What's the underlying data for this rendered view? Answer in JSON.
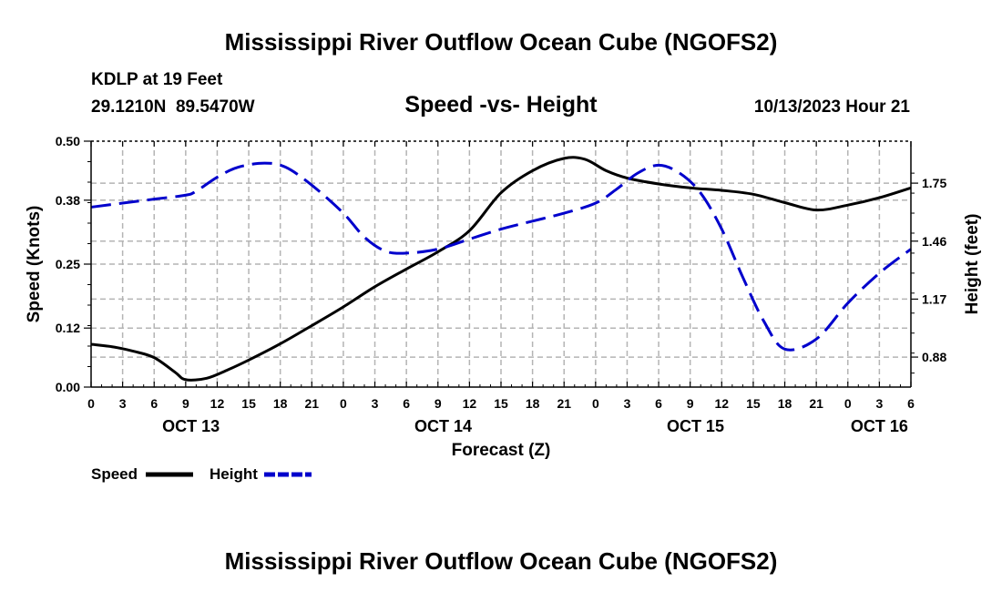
{
  "header": {
    "title": "Mississippi River Outflow Ocean Cube (NGOFS2)",
    "station": "KDLP at 19 Feet",
    "coords": "29.1210N  89.5470W",
    "subtitle": "Speed -vs- Height",
    "timestamp": "10/13/2023 Hour 21"
  },
  "footer": {
    "title": "Mississippi River Outflow Ocean Cube (NGOFS2)"
  },
  "colors": {
    "speed": "#000000",
    "height": "#0000cc",
    "grid": "#b4b4b4"
  },
  "chart_data": {
    "type": "line",
    "title": "Speed -vs- Height",
    "xlabel": "Forecast (Z)",
    "ylabel": "Speed (Knots)",
    "y2label": "Height (feet)",
    "x_range_hours": [
      0,
      78
    ],
    "x_tick_hours": [
      0,
      3,
      6,
      9,
      12,
      15,
      18,
      21,
      24,
      27,
      30,
      33,
      36,
      39,
      42,
      45,
      48,
      51,
      54,
      57,
      60,
      63,
      66,
      69,
      72,
      75,
      78
    ],
    "x_tick_labels": [
      "0",
      "3",
      "6",
      "9",
      "12",
      "15",
      "18",
      "21",
      "0",
      "3",
      "6",
      "9",
      "12",
      "15",
      "18",
      "21",
      "0",
      "3",
      "6",
      "9",
      "12",
      "15",
      "18",
      "21",
      "0",
      "3",
      "6"
    ],
    "date_labels": [
      {
        "hour": 9.5,
        "label": "OCT 13"
      },
      {
        "hour": 33.5,
        "label": "OCT 14"
      },
      {
        "hour": 57.5,
        "label": "OCT 15"
      },
      {
        "hour": 75,
        "label": "OCT 16"
      }
    ],
    "ylim": [
      0,
      0.5
    ],
    "y_ticks": [
      0.0,
      0.12,
      0.25,
      0.38,
      0.5
    ],
    "y_tick_labels": [
      "0.00",
      "0.12",
      "0.25",
      "0.38",
      "0.50"
    ],
    "y2lim": [
      0.73,
      1.96
    ],
    "y2_ticks": [
      0.88,
      1.17,
      1.46,
      1.75
    ],
    "y2_tick_labels": [
      "0.88",
      "1.17",
      "1.46",
      "1.75"
    ],
    "grid": true,
    "legend": [
      {
        "name": "Speed",
        "style": "solid"
      },
      {
        "name": "Height",
        "style": "dashed"
      }
    ],
    "series": [
      {
        "name": "Speed",
        "axis": "left",
        "style": "solid",
        "x": [
          0,
          2,
          4,
          6,
          8,
          9,
          11,
          13,
          15,
          18,
          21,
          24,
          27,
          30,
          33,
          36,
          39,
          42,
          45,
          47,
          49,
          51,
          54,
          57,
          60,
          63,
          66,
          69,
          72,
          75,
          78
        ],
        "y": [
          0.087,
          0.082,
          0.073,
          0.06,
          0.03,
          0.015,
          0.018,
          0.035,
          0.055,
          0.088,
          0.125,
          0.163,
          0.204,
          0.24,
          0.275,
          0.318,
          0.395,
          0.44,
          0.465,
          0.463,
          0.44,
          0.425,
          0.413,
          0.405,
          0.4,
          0.392,
          0.375,
          0.36,
          0.37,
          0.385,
          0.405
        ]
      },
      {
        "name": "Height",
        "axis": "right",
        "style": "dashed",
        "x": [
          0,
          3,
          6,
          9,
          10,
          12,
          14,
          16.5,
          18.5,
          21,
          24,
          26,
          28,
          30,
          33,
          36,
          39,
          42,
          45,
          48,
          50,
          52,
          54,
          56,
          58,
          60,
          62,
          64,
          66,
          69,
          72,
          75,
          78
        ],
        "y": [
          1.63,
          1.65,
          1.67,
          1.69,
          1.71,
          1.78,
          1.83,
          1.85,
          1.83,
          1.74,
          1.6,
          1.48,
          1.41,
          1.4,
          1.42,
          1.47,
          1.52,
          1.56,
          1.6,
          1.65,
          1.72,
          1.8,
          1.84,
          1.8,
          1.7,
          1.52,
          1.28,
          1.06,
          0.92,
          0.97,
          1.15,
          1.3,
          1.42
        ]
      }
    ]
  }
}
